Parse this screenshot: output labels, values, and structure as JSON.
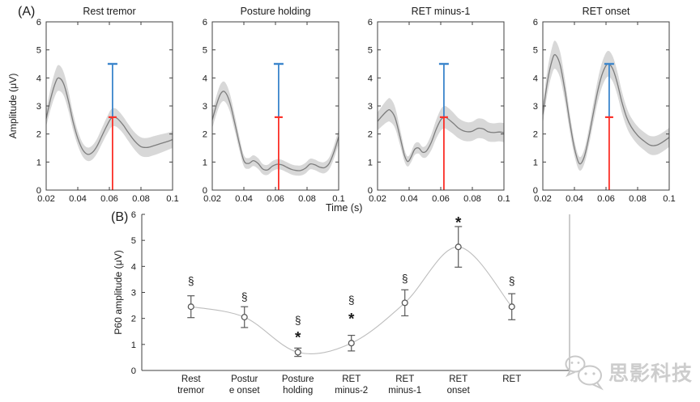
{
  "figure": {
    "panel_a_label": "(A)",
    "panel_b_label": "(B)",
    "time_axis_label": "Time (s)",
    "watermark_text": "思影科技"
  },
  "colors": {
    "band_fill": "#d8d8d8",
    "mean_line": "#7d7d7d",
    "red_marker": "#fb3028",
    "blue_marker": "#3c86cc",
    "axis": "#404040",
    "b_spine_right": "#9a9a9a",
    "b_curve": "#bdbdbd",
    "b_marker": "#5a5a5a",
    "text": "#1a1a1a"
  },
  "chart_data": [
    {
      "type": "line_band",
      "title": "Rest tremor",
      "ylabel": "Amplitude (μV)",
      "xlim": [
        0.02,
        0.1
      ],
      "ylim": [
        0,
        6
      ],
      "xticks": [
        "0.02",
        "0.04",
        "0.06",
        "0.08",
        "0.1"
      ],
      "yticks": [
        0,
        1,
        2,
        3,
        4,
        5,
        6
      ],
      "x": [
        0.02,
        0.023,
        0.026,
        0.028,
        0.031,
        0.034,
        0.037,
        0.04,
        0.043,
        0.046,
        0.049,
        0.052,
        0.055,
        0.058,
        0.061,
        0.0635,
        0.066,
        0.069,
        0.072,
        0.076,
        0.08,
        0.084,
        0.088,
        0.092,
        0.096,
        0.1
      ],
      "y": [
        2.55,
        3.3,
        3.85,
        4.0,
        3.8,
        3.2,
        2.45,
        1.85,
        1.45,
        1.28,
        1.33,
        1.55,
        1.9,
        2.25,
        2.55,
        2.6,
        2.5,
        2.3,
        2.05,
        1.75,
        1.55,
        1.52,
        1.58,
        1.65,
        1.72,
        1.8
      ],
      "band": [
        0.28,
        0.38,
        0.44,
        0.46,
        0.42,
        0.36,
        0.3,
        0.26,
        0.24,
        0.24,
        0.25,
        0.26,
        0.28,
        0.3,
        0.32,
        0.32,
        0.31,
        0.3,
        0.3,
        0.31,
        0.33,
        0.34,
        0.34,
        0.33,
        0.31,
        0.3
      ],
      "marker_x": 0.062,
      "red_segment": [
        0,
        2.6
      ],
      "blue_segment": [
        2.6,
        4.5
      ]
    },
    {
      "type": "line_band",
      "title": "Posture holding",
      "ylabel": "Amplitude (μV)",
      "xlim": [
        0.02,
        0.1
      ],
      "ylim": [
        0,
        6
      ],
      "xticks": [
        "0.02",
        "0.04",
        "0.06",
        "0.08",
        "0.1"
      ],
      "yticks": [
        0,
        1,
        2,
        3,
        4,
        5,
        6
      ],
      "x": [
        0.02,
        0.023,
        0.0255,
        0.028,
        0.031,
        0.034,
        0.037,
        0.04,
        0.043,
        0.046,
        0.049,
        0.052,
        0.055,
        0.058,
        0.061,
        0.064,
        0.067,
        0.07,
        0.073,
        0.076,
        0.079,
        0.082,
        0.085,
        0.088,
        0.091,
        0.094,
        0.097,
        0.1
      ],
      "y": [
        2.5,
        3.1,
        3.45,
        3.5,
        3.15,
        2.45,
        1.7,
        1.05,
        0.95,
        1.05,
        0.95,
        0.75,
        0.72,
        0.85,
        0.92,
        0.9,
        0.82,
        0.74,
        0.7,
        0.7,
        0.78,
        0.93,
        0.9,
        0.82,
        0.8,
        0.95,
        1.35,
        1.9
      ],
      "band": [
        0.3,
        0.33,
        0.35,
        0.35,
        0.32,
        0.28,
        0.24,
        0.2,
        0.19,
        0.19,
        0.19,
        0.18,
        0.18,
        0.18,
        0.18,
        0.18,
        0.18,
        0.18,
        0.18,
        0.18,
        0.19,
        0.19,
        0.19,
        0.19,
        0.2,
        0.21,
        0.23,
        0.26
      ],
      "marker_x": 0.062,
      "red_segment": [
        0,
        2.6
      ],
      "blue_segment": [
        2.6,
        4.5
      ]
    },
    {
      "type": "line_band",
      "title": "RET minus-1",
      "ylabel": "Amplitude (μV)",
      "xlim": [
        0.02,
        0.1
      ],
      "ylim": [
        0,
        6
      ],
      "xticks": [
        "0.02",
        "0.04",
        "0.06",
        "0.08",
        "0.1"
      ],
      "yticks": [
        0,
        1,
        2,
        3,
        4,
        5,
        6
      ],
      "x": [
        0.02,
        0.023,
        0.026,
        0.028,
        0.031,
        0.034,
        0.037,
        0.039,
        0.041,
        0.0435,
        0.046,
        0.0485,
        0.051,
        0.054,
        0.057,
        0.06,
        0.0625,
        0.065,
        0.068,
        0.071,
        0.074,
        0.077,
        0.08,
        0.0835,
        0.087,
        0.09,
        0.0935,
        0.097,
        0.1
      ],
      "y": [
        2.45,
        2.65,
        2.82,
        2.85,
        2.6,
        1.95,
        1.25,
        1.02,
        1.15,
        1.45,
        1.5,
        1.35,
        1.4,
        1.7,
        2.15,
        2.5,
        2.6,
        2.52,
        2.38,
        2.22,
        2.12,
        2.08,
        2.1,
        2.2,
        2.18,
        2.08,
        2.05,
        2.07,
        2.05
      ],
      "band": [
        0.32,
        0.36,
        0.4,
        0.42,
        0.38,
        0.3,
        0.22,
        0.18,
        0.18,
        0.2,
        0.2,
        0.19,
        0.22,
        0.28,
        0.33,
        0.38,
        0.4,
        0.4,
        0.38,
        0.36,
        0.35,
        0.34,
        0.34,
        0.35,
        0.35,
        0.34,
        0.33,
        0.33,
        0.34
      ],
      "marker_x": 0.062,
      "red_segment": [
        0,
        2.6
      ],
      "blue_segment": [
        2.6,
        4.5
      ]
    },
    {
      "type": "line_band",
      "title": "RET onset",
      "ylabel": "Amplitude (μV)",
      "xlim": [
        0.02,
        0.1
      ],
      "ylim": [
        0,
        6
      ],
      "xticks": [
        "0.02",
        "0.04",
        "0.06",
        "0.08",
        "0.1"
      ],
      "yticks": [
        0,
        1,
        2,
        3,
        4,
        5,
        6
      ],
      "x": [
        0.02,
        0.023,
        0.026,
        0.028,
        0.031,
        0.034,
        0.037,
        0.04,
        0.043,
        0.046,
        0.049,
        0.052,
        0.055,
        0.058,
        0.061,
        0.064,
        0.067,
        0.07,
        0.073,
        0.076,
        0.08,
        0.084,
        0.088,
        0.092,
        0.096,
        0.1
      ],
      "y": [
        2.7,
        3.9,
        4.65,
        4.82,
        4.45,
        3.55,
        2.45,
        1.5,
        0.95,
        1.15,
        1.85,
        2.75,
        3.6,
        4.2,
        4.5,
        4.35,
        3.85,
        3.15,
        2.6,
        2.25,
        1.95,
        1.75,
        1.6,
        1.6,
        1.72,
        1.88
      ],
      "band": [
        0.35,
        0.42,
        0.48,
        0.5,
        0.46,
        0.4,
        0.33,
        0.27,
        0.24,
        0.26,
        0.3,
        0.35,
        0.4,
        0.44,
        0.46,
        0.45,
        0.42,
        0.38,
        0.35,
        0.33,
        0.32,
        0.32,
        0.33,
        0.34,
        0.34,
        0.34
      ],
      "marker_x": 0.062,
      "red_segment": [
        0,
        2.6
      ],
      "blue_segment": [
        2.6,
        4.5
      ]
    },
    {
      "type": "errorbar_line",
      "ylabel": "P60 amplitude (μV)",
      "ylim": [
        0,
        6
      ],
      "yticks": [
        0,
        1,
        2,
        3,
        4,
        5,
        6
      ],
      "categories": [
        [
          "Rest",
          "tremor"
        ],
        [
          "Postur",
          "e onset"
        ],
        [
          "Posture",
          "holding"
        ],
        [
          "RET",
          "minus-2"
        ],
        [
          "RET",
          "minus-1"
        ],
        [
          "RET",
          "onset"
        ],
        [
          "RET"
        ]
      ],
      "values": [
        2.45,
        2.05,
        0.7,
        1.05,
        2.6,
        4.75,
        2.45
      ],
      "errors": [
        0.42,
        0.4,
        0.16,
        0.3,
        0.5,
        0.78,
        0.5
      ],
      "annotations": [
        [
          {
            "sym": "§",
            "y": 3.45
          }
        ],
        [
          {
            "sym": "§",
            "y": 2.85
          }
        ],
        [
          {
            "sym": "§",
            "y": 1.95
          },
          {
            "sym": "*",
            "y": 1.38
          }
        ],
        [
          {
            "sym": "§",
            "y": 2.72
          },
          {
            "sym": "*",
            "y": 2.1
          }
        ],
        [
          {
            "sym": "§",
            "y": 3.55
          }
        ],
        [
          {
            "sym": "*",
            "y": 5.8
          }
        ],
        [
          {
            "sym": "§",
            "y": 3.45
          }
        ]
      ]
    }
  ]
}
